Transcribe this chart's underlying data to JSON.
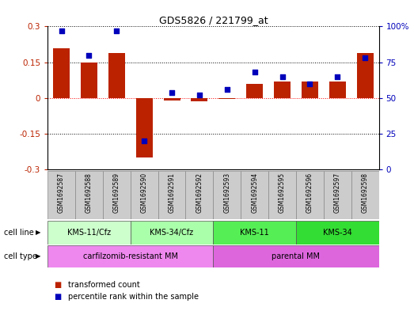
{
  "title": "GDS5826 / 221799_at",
  "samples": [
    "GSM1692587",
    "GSM1692588",
    "GSM1692589",
    "GSM1692590",
    "GSM1692591",
    "GSM1692592",
    "GSM1692593",
    "GSM1692594",
    "GSM1692595",
    "GSM1692596",
    "GSM1692597",
    "GSM1692598"
  ],
  "transformed_count": [
    0.21,
    0.15,
    0.19,
    -0.25,
    -0.01,
    -0.015,
    -0.005,
    0.06,
    0.07,
    0.07,
    0.07,
    0.19
  ],
  "percentile_rank": [
    97,
    80,
    97,
    20,
    54,
    52,
    56,
    68,
    65,
    60,
    65,
    78
  ],
  "ylim": [
    -0.3,
    0.3
  ],
  "yticks_left": [
    -0.3,
    -0.15,
    0,
    0.15,
    0.3
  ],
  "yticks_right": [
    0,
    25,
    50,
    75,
    100
  ],
  "bar_color": "#bb2200",
  "dot_color": "#0000bb",
  "cell_line_groups": [
    {
      "label": "KMS-11/Cfz",
      "start": 0,
      "end": 3,
      "color": "#ccffcc"
    },
    {
      "label": "KMS-34/Cfz",
      "start": 3,
      "end": 6,
      "color": "#aaffaa"
    },
    {
      "label": "KMS-11",
      "start": 6,
      "end": 9,
      "color": "#55ee55"
    },
    {
      "label": "KMS-34",
      "start": 9,
      "end": 12,
      "color": "#33dd33"
    }
  ],
  "cell_type_groups": [
    {
      "label": "carfilzomib-resistant MM",
      "start": 0,
      "end": 6,
      "color": "#ee88ee"
    },
    {
      "label": "parental MM",
      "start": 6,
      "end": 12,
      "color": "#dd66dd"
    }
  ],
  "legend_bar_label": "transformed count",
  "legend_dot_label": "percentile rank within the sample"
}
